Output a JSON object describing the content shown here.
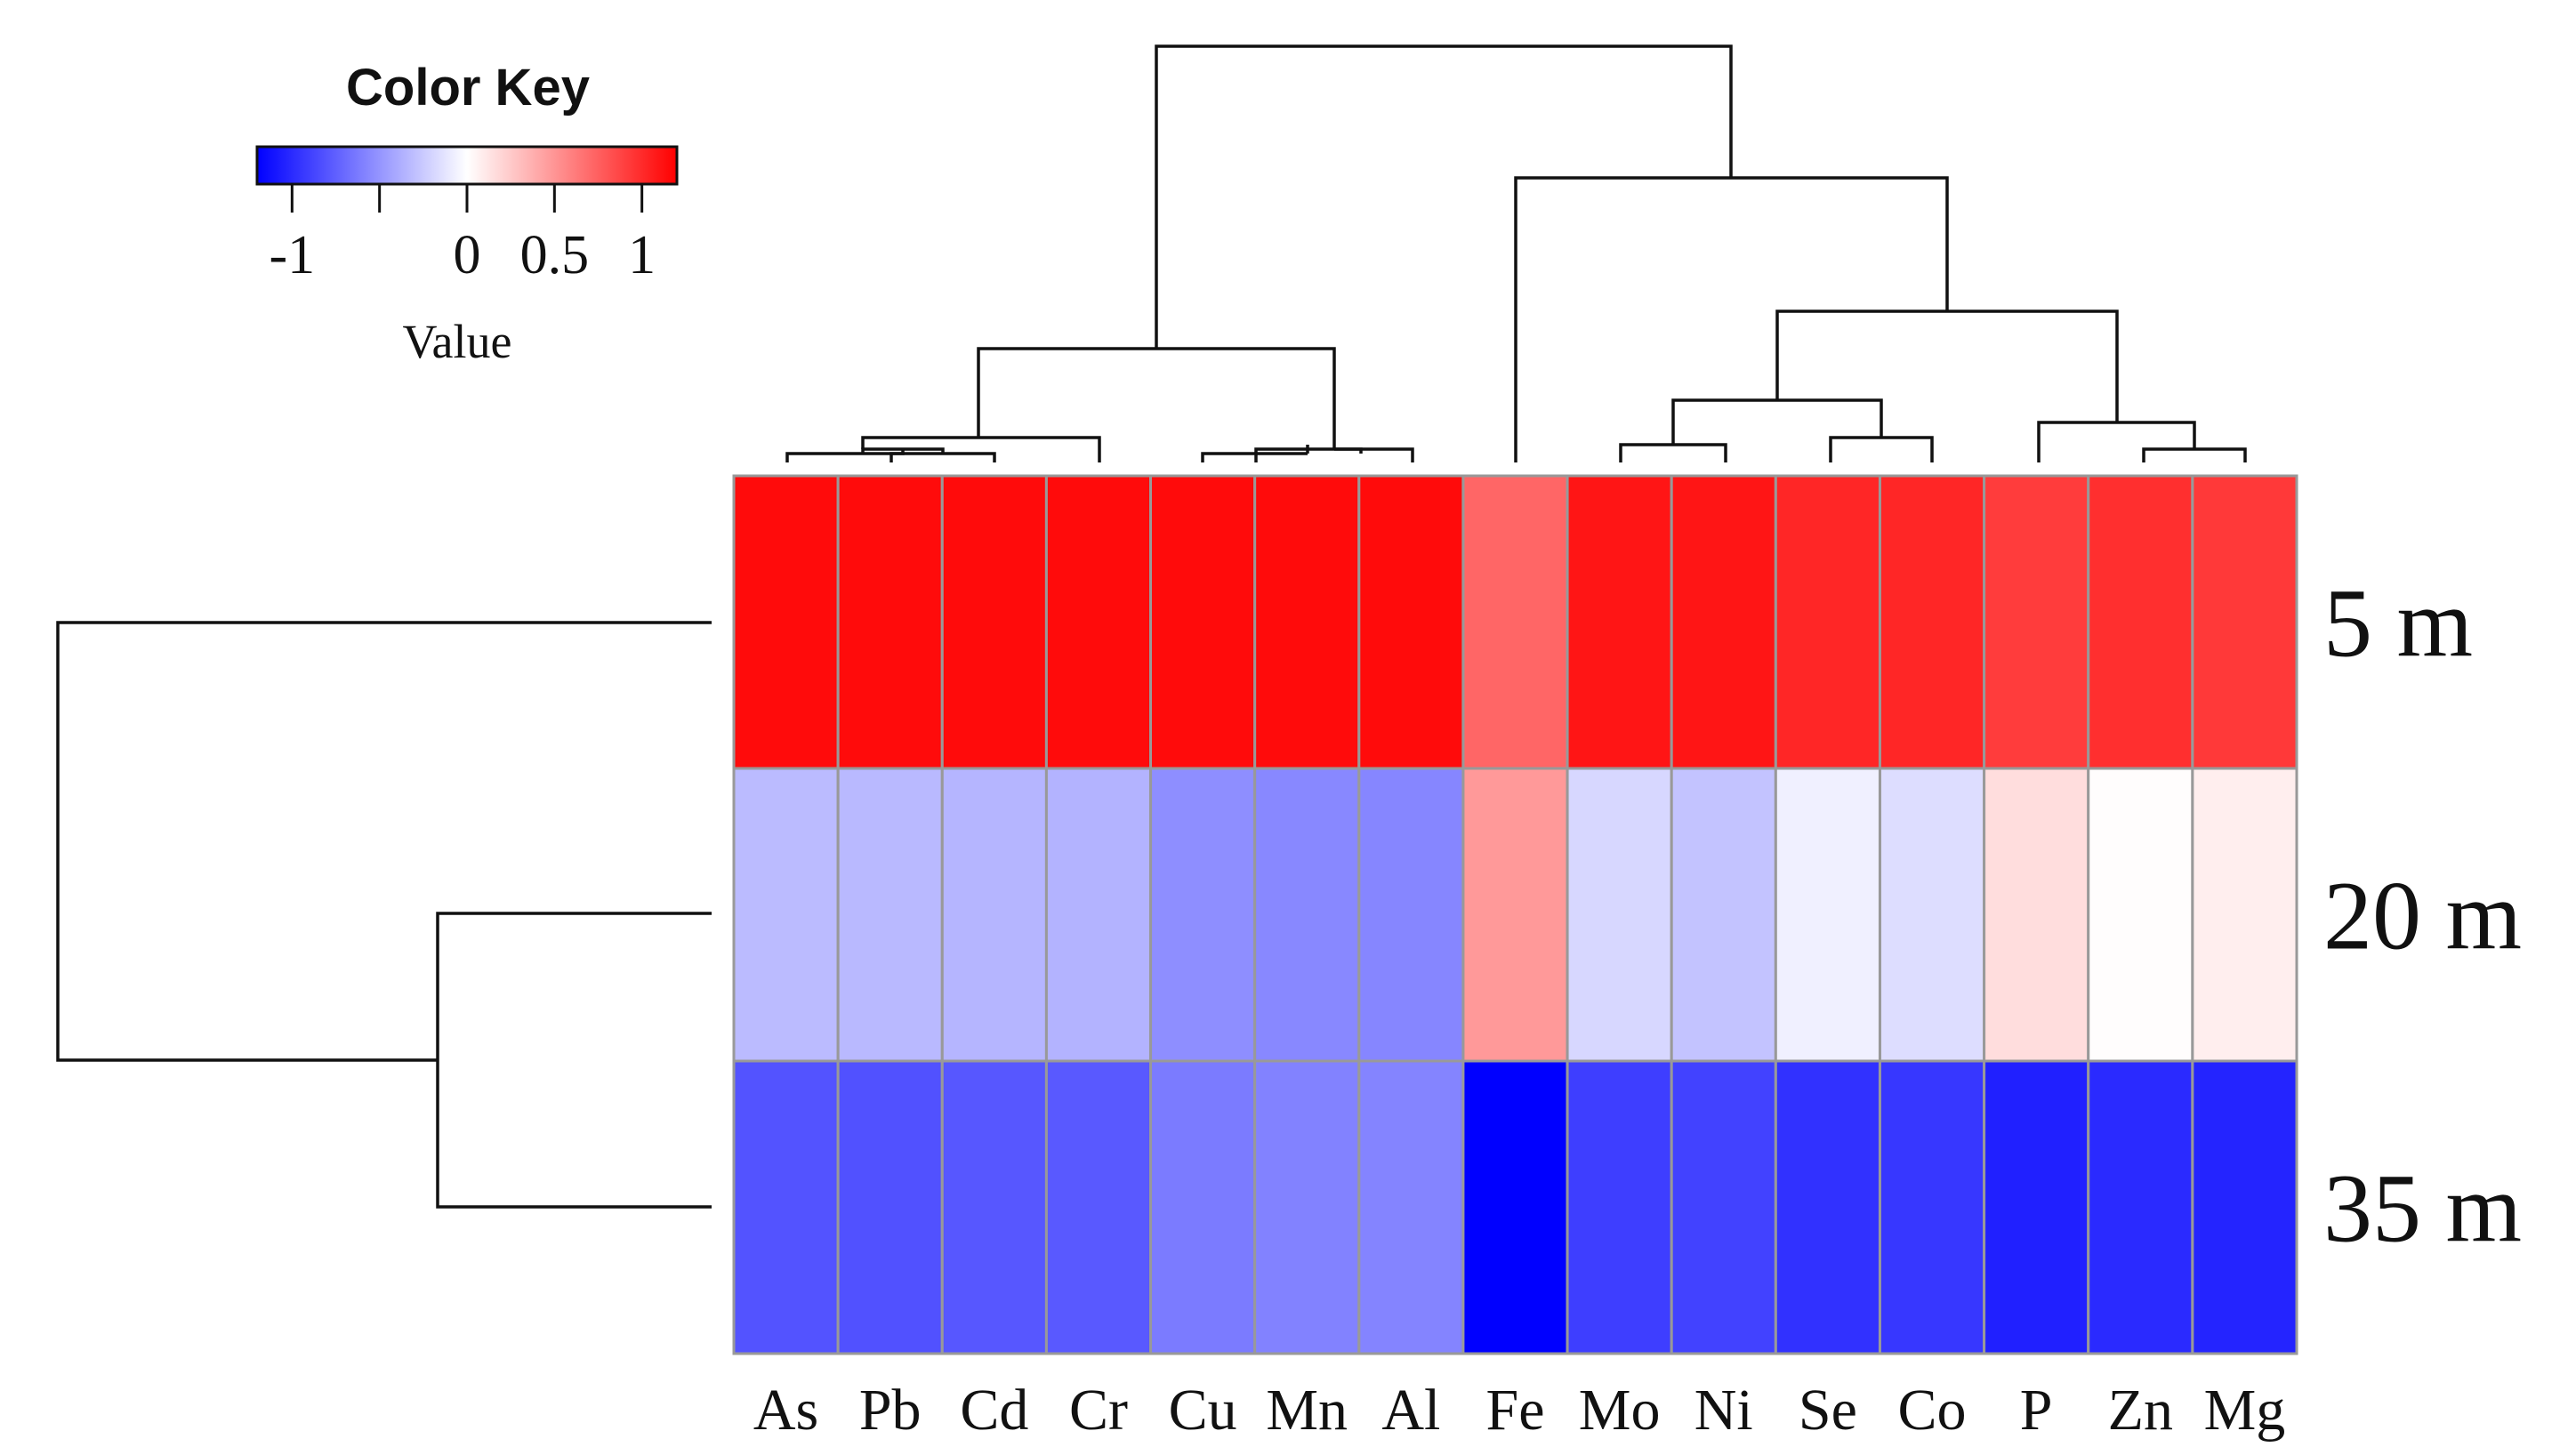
{
  "chart_data": {
    "type": "heatmap",
    "title": "",
    "rows": [
      "5 m",
      "20 m",
      "35 m"
    ],
    "columns": [
      "As",
      "Pb",
      "Cd",
      "Cr",
      "Cu",
      "Mn",
      "Al",
      "Fe",
      "Mo",
      "Ni",
      "Se",
      "Co",
      "P",
      "Zn",
      "Mg"
    ],
    "values": [
      [
        1.15,
        1.15,
        1.15,
        1.15,
        1.15,
        1.15,
        1.15,
        0.72,
        1.1,
        1.1,
        1.02,
        1.02,
        0.92,
        0.98,
        0.93
      ],
      [
        -0.32,
        -0.33,
        -0.35,
        -0.36,
        -0.53,
        -0.56,
        -0.57,
        0.48,
        -0.19,
        -0.28,
        -0.07,
        -0.16,
        0.16,
        0.01,
        0.08
      ],
      [
        -0.81,
        -0.82,
        -0.79,
        -0.78,
        -0.62,
        -0.59,
        -0.58,
        -1.2,
        -0.91,
        -0.89,
        -0.97,
        -0.94,
        -1.05,
        -1.0,
        -1.03
      ]
    ],
    "color_key": {
      "title": "Color Key",
      "label": "Value",
      "ticks": [
        -1,
        0,
        0.5,
        1
      ],
      "tick_labels": [
        "-1",
        "0",
        "0.5",
        "1"
      ],
      "range": [
        -1.2,
        1.2
      ],
      "low_color": "#0000ff",
      "mid_color": "#ffffff",
      "high_color": "#ff0000",
      "histogram_ticks": [
        -1,
        -0.5,
        0,
        0.5,
        1
      ]
    },
    "cell_border_color": "#999999",
    "dendrogram_color": "#111111"
  }
}
